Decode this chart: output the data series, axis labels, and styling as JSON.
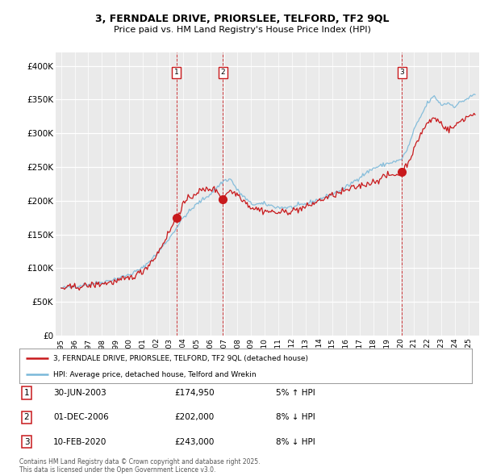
{
  "title_line1": "3, FERNDALE DRIVE, PRIORSLEE, TELFORD, TF2 9QL",
  "title_line2": "Price paid vs. HM Land Registry's House Price Index (HPI)",
  "ylabel_ticks": [
    "£0",
    "£50K",
    "£100K",
    "£150K",
    "£200K",
    "£250K",
    "£300K",
    "£350K",
    "£400K"
  ],
  "ytick_values": [
    0,
    50000,
    100000,
    150000,
    200000,
    250000,
    300000,
    350000,
    400000
  ],
  "ylim": [
    0,
    420000
  ],
  "xlim_start": 1994.6,
  "xlim_end": 2025.8,
  "transactions": [
    {
      "label": "1",
      "date": 2003.49,
      "price": 174950
    },
    {
      "label": "2",
      "date": 2006.92,
      "price": 202000
    },
    {
      "label": "3",
      "date": 2020.12,
      "price": 243000
    }
  ],
  "transaction_table": [
    {
      "num": "1",
      "date": "30-JUN-2003",
      "price": "£174,950",
      "pct": "5% ↑ HPI"
    },
    {
      "num": "2",
      "date": "01-DEC-2006",
      "price": "£202,000",
      "pct": "8% ↓ HPI"
    },
    {
      "num": "3",
      "date": "10-FEB-2020",
      "price": "£243,000",
      "pct": "8% ↓ HPI"
    }
  ],
  "legend_line1": "3, FERNDALE DRIVE, PRIORSLEE, TELFORD, TF2 9QL (detached house)",
  "legend_line2": "HPI: Average price, detached house, Telford and Wrekin",
  "footer": "Contains HM Land Registry data © Crown copyright and database right 2025.\nThis data is licensed under the Open Government Licence v3.0.",
  "hpi_color": "#7ab8d9",
  "price_color": "#c8191c",
  "background_color": "#ffffff",
  "plot_bg_color": "#eaeaea"
}
